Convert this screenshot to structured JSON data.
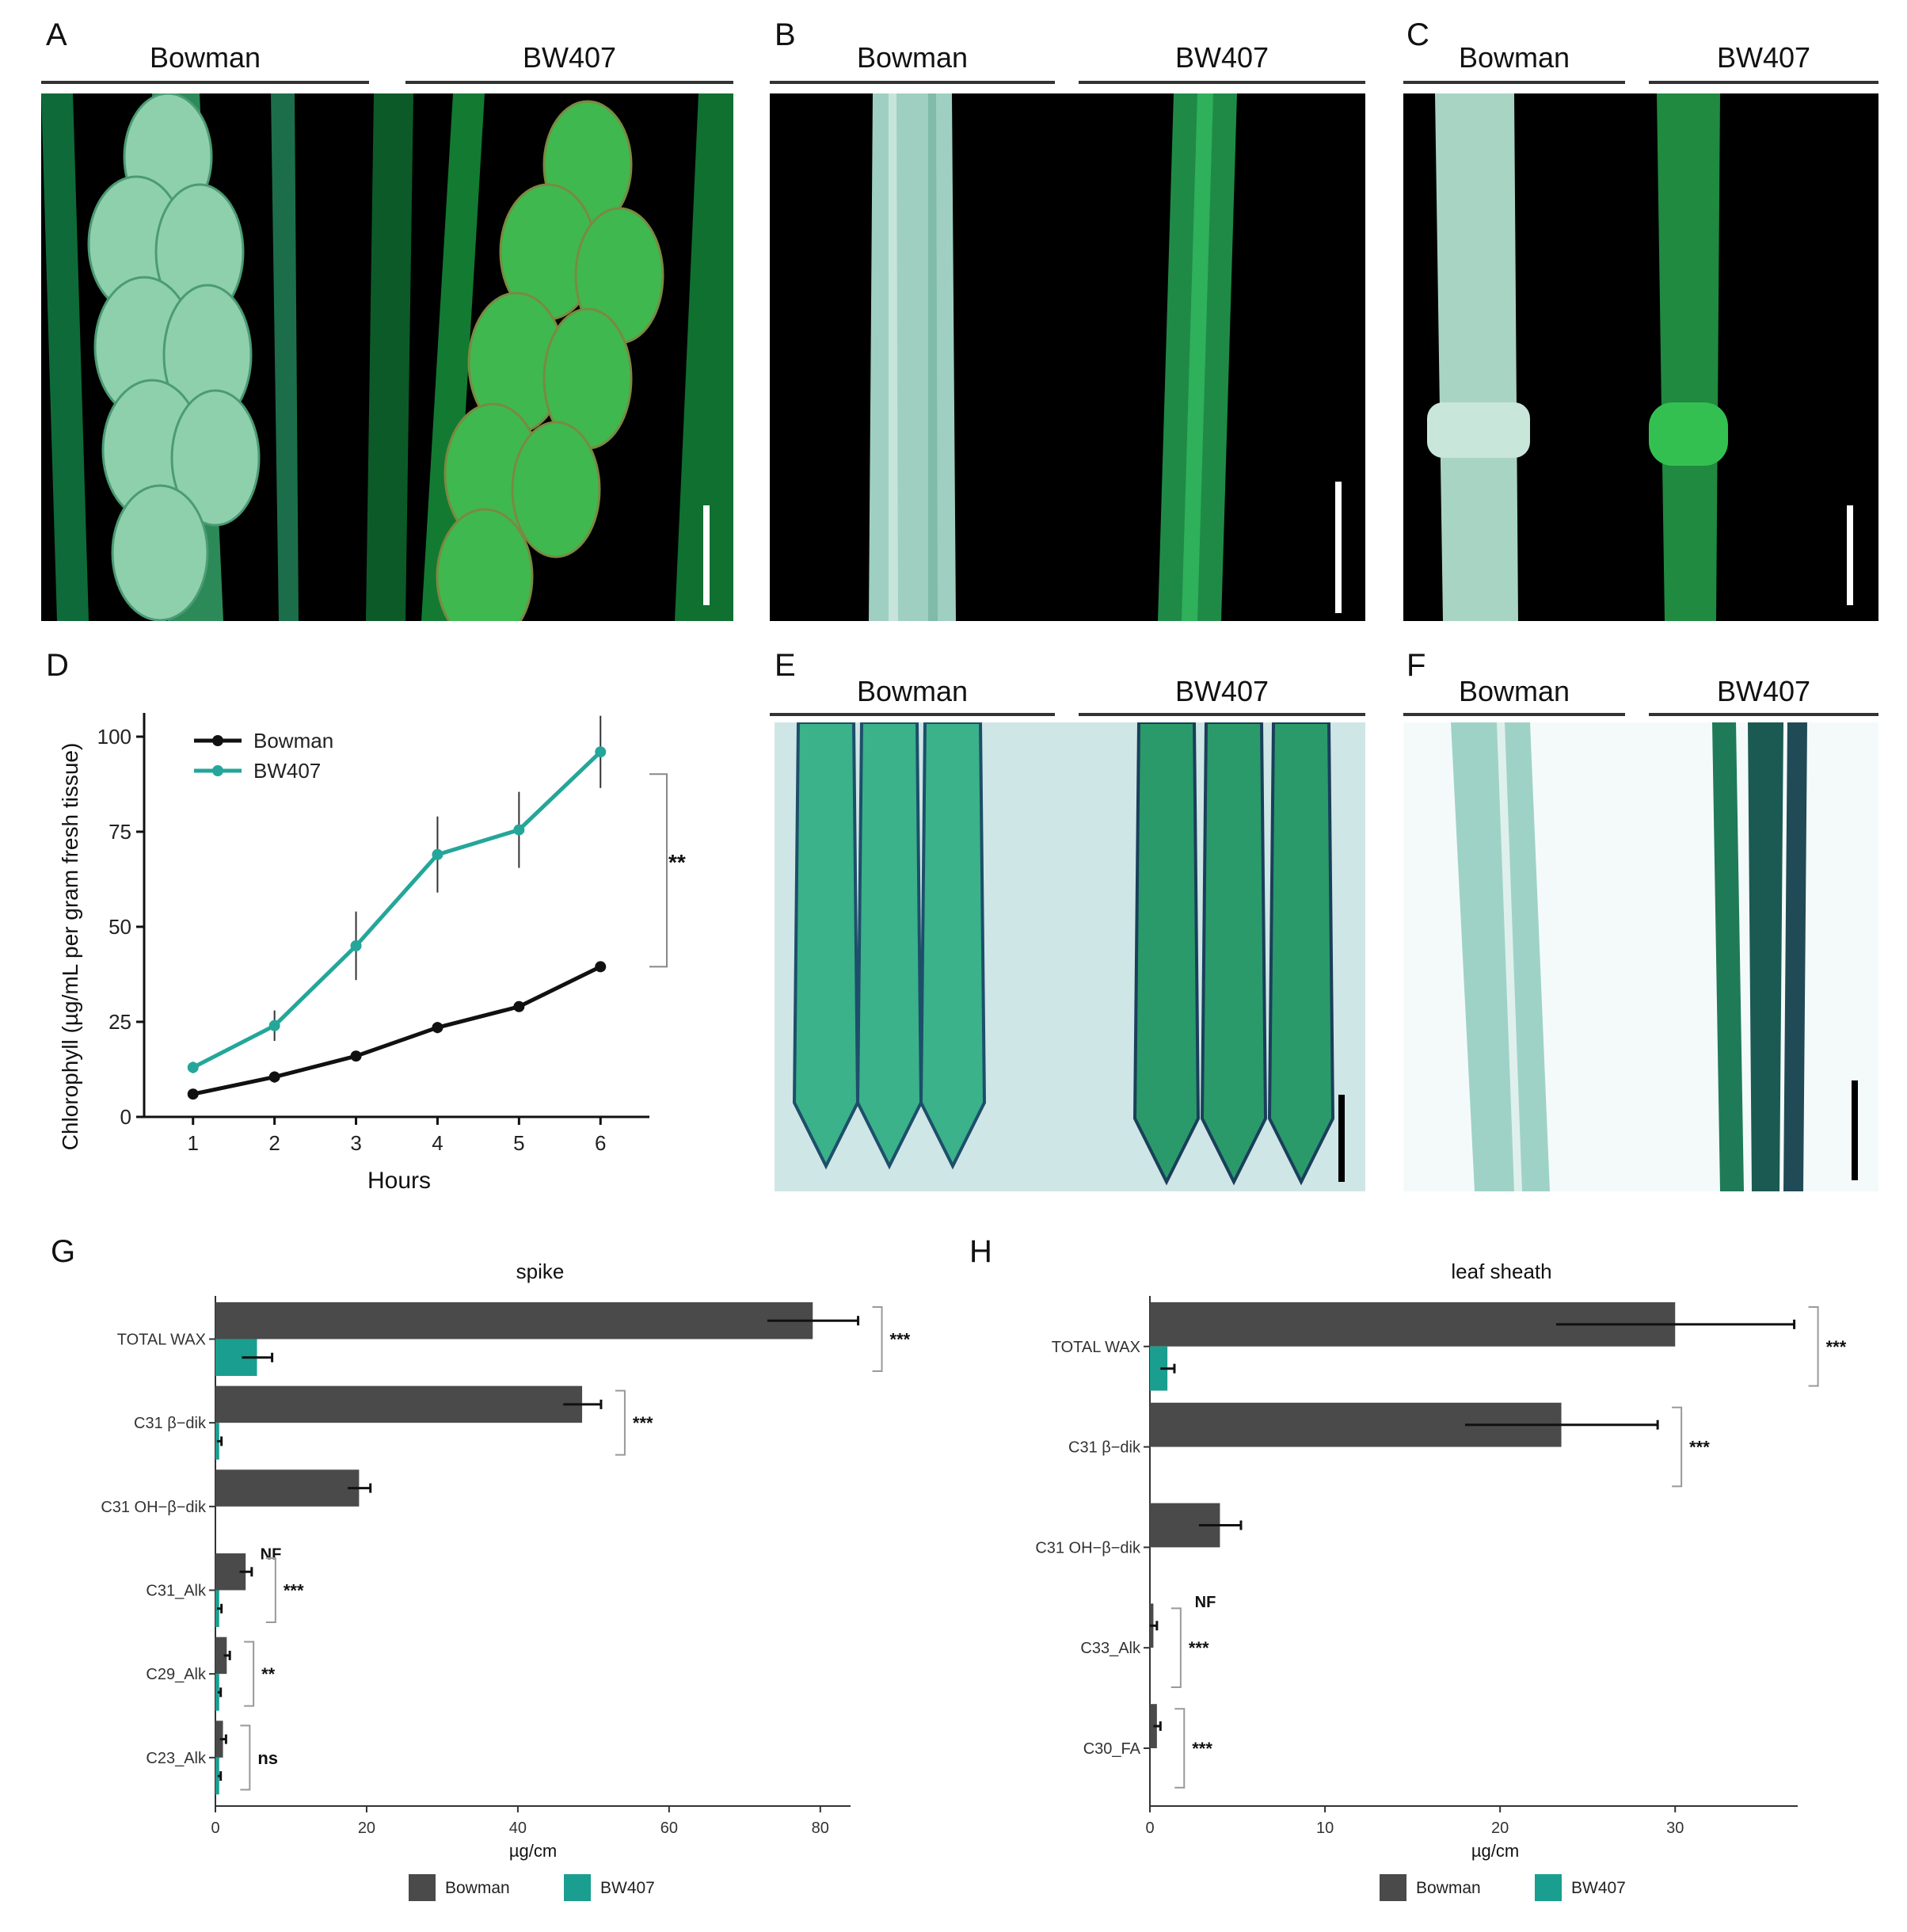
{
  "panels": {
    "A": {
      "letter": "A",
      "left": "Bowman",
      "right": "BW407"
    },
    "B": {
      "letter": "B",
      "left": "Bowman",
      "right": "BW407"
    },
    "C": {
      "letter": "C",
      "left": "Bowman",
      "right": "BW407"
    },
    "D": {
      "letter": "D"
    },
    "E": {
      "letter": "E",
      "left": "Bowman",
      "right": "BW407"
    },
    "F": {
      "letter": "F",
      "left": "Bowman",
      "right": "BW407"
    },
    "G": {
      "letter": "G"
    },
    "H": {
      "letter": "H"
    }
  },
  "colors": {
    "bowman": "#4a4a4a",
    "bw407": "#1a9e8f",
    "bowman_line": "#111111",
    "bw407_line": "#24a69a"
  },
  "chart_data": [
    {
      "id": "D",
      "type": "line",
      "x": [
        1,
        2,
        3,
        4,
        5,
        6
      ],
      "xlabel": "Hours",
      "ylabel": "Chlorophyll (µg/mL per gram fresh tissue)",
      "ylim": [
        0,
        100
      ],
      "yticks": [
        0,
        25,
        50,
        75,
        100
      ],
      "xticks": [
        1,
        2,
        3,
        4,
        5,
        6
      ],
      "series": [
        {
          "name": "Bowman",
          "values": [
            6,
            10.5,
            16,
            23.5,
            29,
            39.5
          ],
          "err": [
            1,
            1.5,
            1,
            1.5,
            1,
            1
          ]
        },
        {
          "name": "BW407",
          "values": [
            13,
            24,
            45,
            69,
            75.5,
            96
          ],
          "err": [
            1.5,
            4,
            9,
            10,
            10,
            9.5
          ]
        }
      ],
      "significance": "**",
      "legend": "top-left",
      "grid": false
    },
    {
      "id": "G",
      "type": "bar",
      "orientation": "horizontal",
      "title": "spike",
      "categories": [
        "TOTAL WAX",
        "C31 β−dik",
        "C31 OH−β−dik",
        "C31_Alk",
        "C29_Alk",
        "C23_Alk"
      ],
      "series": [
        {
          "name": "Bowman",
          "values": [
            79,
            48.5,
            19,
            4,
            1.5,
            1
          ],
          "err": [
            6,
            2.5,
            1.5,
            0.8,
            0.4,
            0.4
          ]
        },
        {
          "name": "BW407",
          "values": [
            5.5,
            0.5,
            0,
            0.5,
            0.5,
            0.5
          ],
          "err": [
            2,
            0.3,
            0,
            0.3,
            0.2,
            0.2
          ]
        }
      ],
      "significance": [
        "***",
        "***",
        "",
        "***",
        "**",
        "ns"
      ],
      "nf_label": "NF",
      "nf_category": 2,
      "xlabel": "µg/cm",
      "xlim": [
        0,
        84
      ],
      "xticks": [
        0,
        20,
        40,
        60,
        80
      ],
      "legend": "bottom",
      "grid": false
    },
    {
      "id": "H",
      "type": "bar",
      "orientation": "horizontal",
      "title": "leaf sheath",
      "categories": [
        "TOTAL WAX",
        "C31 β−dik",
        "C31 OH−β−dik",
        "C33_Alk",
        "C30_FA"
      ],
      "series": [
        {
          "name": "Bowman",
          "values": [
            30,
            23.5,
            4,
            0.2,
            0.4
          ],
          "err": [
            6.8,
            5.5,
            1.2,
            0.2,
            0.2
          ]
        },
        {
          "name": "BW407",
          "values": [
            1,
            0,
            0,
            0,
            0
          ],
          "err": [
            0.4,
            0,
            0,
            0,
            0
          ]
        }
      ],
      "significance": [
        "***",
        "***",
        "",
        "***",
        "***"
      ],
      "nf_label": "NF",
      "nf_category": 2,
      "xlabel": "µg/cm",
      "xlim": [
        0,
        37
      ],
      "xticks": [
        0,
        10,
        20,
        30
      ],
      "legend": "bottom",
      "grid": false
    }
  ]
}
